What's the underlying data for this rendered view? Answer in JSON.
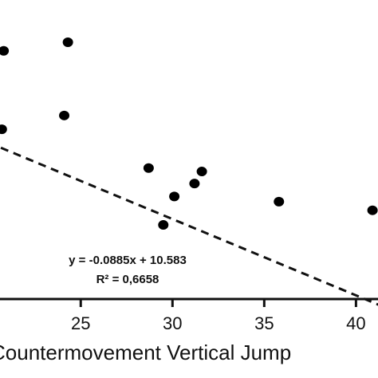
{
  "chart_data": {
    "type": "scatter",
    "xlabel": "Countermovement Vertical Jump",
    "x_ticks": [
      25,
      30,
      35,
      40
    ],
    "xlim": [
      20.6,
      41.2
    ],
    "ylim": [
      7.0,
      10.47
    ],
    "grid": false,
    "points": [
      {
        "x": 20.8,
        "y": 9.88
      },
      {
        "x": 20.7,
        "y": 8.97
      },
      {
        "x": 24.3,
        "y": 9.98
      },
      {
        "x": 24.1,
        "y": 9.13
      },
      {
        "x": 28.7,
        "y": 8.52
      },
      {
        "x": 30.1,
        "y": 8.19
      },
      {
        "x": 29.5,
        "y": 7.86
      },
      {
        "x": 31.2,
        "y": 8.34
      },
      {
        "x": 31.6,
        "y": 8.48
      },
      {
        "x": 35.8,
        "y": 8.13
      },
      {
        "x": 40.9,
        "y": 8.03
      }
    ],
    "trendline": {
      "equation": "y = -0.0885x + 10.583",
      "r_squared": "R² = 0,6658",
      "slope": -0.0885,
      "intercept": 10.583
    }
  }
}
